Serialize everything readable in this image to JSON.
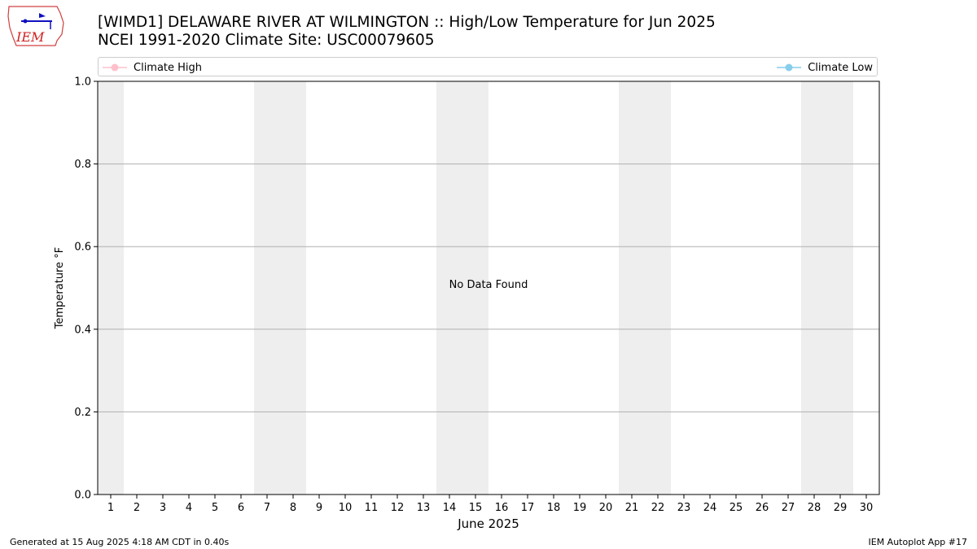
{
  "header": {
    "title_line1": "[WIMD1] DELAWARE RIVER AT WILMINGTON :: High/Low Temperature for Jun 2025",
    "title_line2": "NCEI 1991-2020 Climate Site: USC00079605",
    "logo_text": "IEM"
  },
  "legend": {
    "high_label": "Climate High",
    "low_label": "Climate Low",
    "high_color": "#ffc0cb",
    "low_color": "#87ceeb",
    "placement": "top"
  },
  "chart_data": {
    "type": "line",
    "xlabel": "June 2025",
    "ylabel": "Temperature °F",
    "xlim": [
      0.5,
      30.5
    ],
    "ylim": [
      0,
      1
    ],
    "x_ticks": [
      1,
      2,
      3,
      4,
      5,
      6,
      7,
      8,
      9,
      10,
      11,
      12,
      13,
      14,
      15,
      16,
      17,
      18,
      19,
      20,
      21,
      22,
      23,
      24,
      25,
      26,
      27,
      28,
      29,
      30
    ],
    "y_ticks": [
      "0.0",
      "0.2",
      "0.4",
      "0.6",
      "0.8",
      "1.0"
    ],
    "y_tick_values": [
      0,
      0.2,
      0.4,
      0.6,
      0.8,
      1.0
    ],
    "weekend_bands": [
      [
        0.5,
        1.5
      ],
      [
        6.5,
        8.5
      ],
      [
        13.5,
        15.5
      ],
      [
        20.5,
        22.5
      ],
      [
        27.5,
        29.5
      ]
    ],
    "weekend_color": "#eeeeee",
    "grid": "horizontal",
    "annotation": "No Data Found",
    "series": [
      {
        "name": "Climate High",
        "values": []
      },
      {
        "name": "Climate Low",
        "values": []
      }
    ]
  },
  "footer": {
    "left": "Generated at 15 Aug 2025 4:18 AM CDT in 0.40s",
    "right": "IEM Autoplot App #17"
  }
}
